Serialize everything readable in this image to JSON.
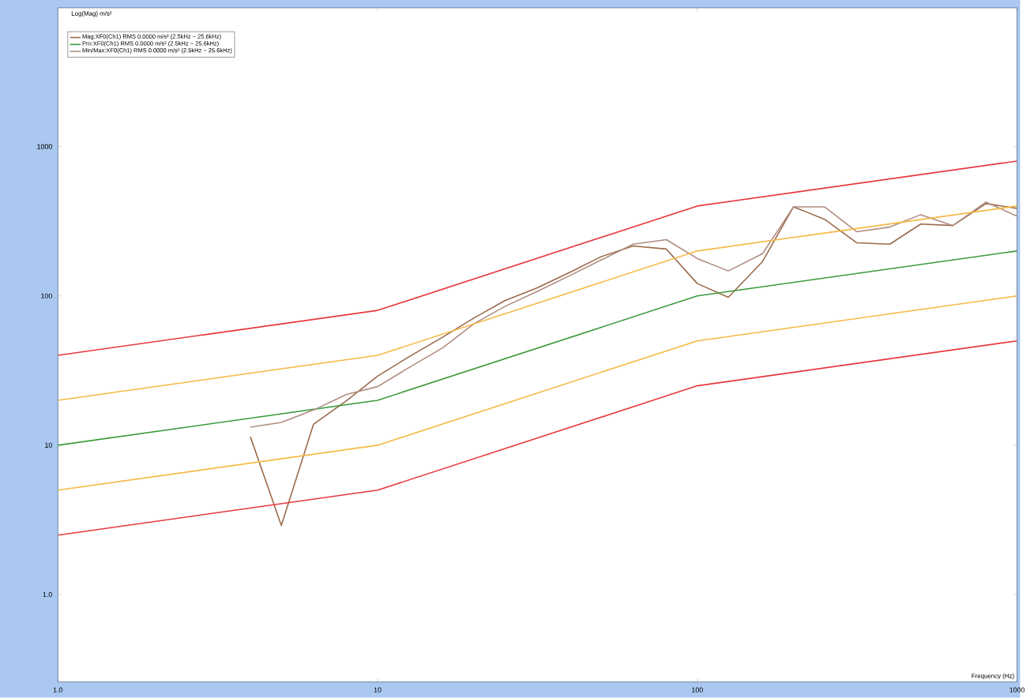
{
  "chart_data": {
    "type": "line",
    "ylabel": "Log(Mag) m/s²",
    "xlabel": "Frequency (Hz)",
    "log": "xy",
    "xlim": [
      1,
      1000
    ],
    "ylim": [
      0.26,
      8500
    ],
    "xticks": [
      {
        "value": 1,
        "label": "1.0"
      },
      10,
      100,
      1000
    ],
    "yticks": [
      {
        "value": 1,
        "label": "1.0"
      },
      10,
      100,
      1000
    ],
    "legend": "top left",
    "marker": "none",
    "line_style": "solid",
    "series": [
      {
        "name": "Mag:XF0(Ch1) RMS 0.0000 m/s²  (2.5kHz ~ 25.6kHz)",
        "color": "#9a6a4a",
        "x": [
          4,
          5,
          6.3,
          8,
          10,
          12.5,
          16,
          20,
          25,
          31.5,
          40,
          50,
          63,
          80,
          100,
          125,
          160,
          200,
          250,
          315,
          400,
          500,
          630,
          800,
          1000
        ],
        "values": [
          11.4,
          2.9,
          13.8,
          19.9,
          29,
          39,
          53,
          71,
          93,
          113,
          144,
          183,
          216,
          206,
          121,
          98,
          170,
          395,
          326,
          227,
          222,
          303,
          296,
          415,
          386
        ]
      },
      {
        "name": "Pro:XF0(Ch1) RMS 0.0000 m/s²  (2.5kHz ~ 25.6kHz)",
        "color": "#3a9a3a",
        "x": [
          1,
          10,
          100,
          1000
        ],
        "values": [
          10,
          20,
          100,
          200
        ]
      },
      {
        "name": "Min/Max:XF0(Ch1) RMS 0.0000 m/s²  (2.5kHz ~ 25.6kHz)",
        "color": "#b08c80",
        "x": [
          4,
          5,
          6.3,
          8,
          10,
          12.5,
          16,
          20,
          25,
          31.5,
          40,
          50,
          63,
          80,
          100,
          125,
          160,
          200,
          250,
          315,
          400,
          500,
          630,
          800,
          1000
        ],
        "values": [
          13.2,
          14.2,
          17.2,
          21.9,
          24.7,
          33,
          45,
          65,
          85,
          107,
          137,
          174,
          222,
          238,
          178,
          147,
          192,
          395,
          395,
          269,
          289,
          350,
          296,
          425,
          342
        ]
      },
      {
        "color": "#e8383c",
        "x": [
          1,
          10,
          100,
          1000
        ],
        "values": [
          40,
          80,
          400,
          800
        ]
      },
      {
        "color": "#f5b942",
        "x": [
          1,
          10,
          100,
          1000
        ],
        "values": [
          20,
          40,
          200,
          400
        ]
      },
      {
        "color": "#f5b942",
        "x": [
          1,
          10,
          100,
          1000
        ],
        "values": [
          5,
          10,
          50,
          100
        ]
      },
      {
        "color": "#e8383c",
        "x": [
          1,
          10,
          100,
          1000
        ],
        "values": [
          2.5,
          5,
          25,
          50
        ]
      }
    ]
  }
}
